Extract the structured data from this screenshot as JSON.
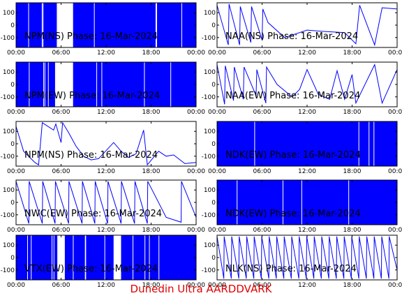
{
  "footer": {
    "credit": "Dunedin Ultra AARDDVARK"
  },
  "colors": {
    "trace": "#0000ff",
    "axis": "#000000",
    "background": "#ffffff",
    "credit": "#e00000"
  },
  "chart_data": [
    {
      "type": "line",
      "title": "NPM(NS) Phase: 16-Mar-2024",
      "xlim": [
        "00:00",
        "24:00"
      ],
      "ylim": [
        -180,
        180
      ],
      "xticks": [
        "00:00",
        "06:00",
        "12:00",
        "18:00",
        "00:00"
      ],
      "yticks": [
        100,
        0,
        -100
      ],
      "pattern": "dense-noise",
      "dense_ranges": [
        [
          0.0,
          5.5
        ],
        [
          7.6,
          24.0
        ]
      ],
      "series": [
        {
          "values": []
        }
      ]
    },
    {
      "type": "line",
      "title": "NAA(NS) Phase: 16-Mar-2024",
      "xlim": [
        "00:00",
        "24:00"
      ],
      "ylim": [
        -180,
        180
      ],
      "xticks": [
        "00:00",
        "06:00",
        "12:00",
        "18:00",
        "00:00"
      ],
      "yticks": [
        100,
        0,
        -100
      ],
      "pattern": "phase-trace",
      "series": [
        {
          "values": [
            [
              0,
              160
            ],
            [
              1.5,
              -160
            ],
            [
              1.6,
              170
            ],
            [
              3,
              -160
            ],
            [
              3.1,
              150
            ],
            [
              4.5,
              -140
            ],
            [
              4.6,
              150
            ],
            [
              6,
              -120
            ],
            [
              6.1,
              130
            ],
            [
              6.8,
              20
            ],
            [
              9,
              -100
            ],
            [
              12,
              -40
            ],
            [
              14,
              -50
            ],
            [
              17,
              -60
            ],
            [
              18.5,
              -150
            ],
            [
              19,
              160
            ],
            [
              21,
              -160
            ],
            [
              22,
              140
            ],
            [
              24,
              130
            ]
          ]
        }
      ]
    },
    {
      "type": "line",
      "title": "NPM(EW) Phase: 16-Mar-2024",
      "xlim": [
        "00:00",
        "24:00"
      ],
      "ylim": [
        -180,
        180
      ],
      "xticks": [
        "00:00",
        "06:00",
        "12:00",
        "18:00",
        "00:00"
      ],
      "yticks": [
        100,
        0,
        -100
      ],
      "pattern": "dense-noise",
      "dense_ranges": [
        [
          0.0,
          5.2
        ],
        [
          7.6,
          24.0
        ]
      ],
      "series": [
        {
          "values": []
        }
      ]
    },
    {
      "type": "line",
      "title": "NAA(EW) Phase: 16-Mar-2024",
      "xlim": [
        "00:00",
        "24:00"
      ],
      "ylim": [
        -180,
        180
      ],
      "xticks": [
        "00:00",
        "06:00",
        "12:00",
        "18:00",
        "00:00"
      ],
      "yticks": [
        100,
        0,
        -100
      ],
      "pattern": "phase-trace",
      "series": [
        {
          "values": [
            [
              0,
              160
            ],
            [
              1,
              -160
            ],
            [
              1.1,
              150
            ],
            [
              2.2,
              -130
            ],
            [
              2.3,
              140
            ],
            [
              3.5,
              -120
            ],
            [
              3.6,
              140
            ],
            [
              5.2,
              -90
            ],
            [
              5.3,
              120
            ],
            [
              6.5,
              -150
            ],
            [
              6.6,
              140
            ],
            [
              8,
              0
            ],
            [
              10,
              -100
            ],
            [
              11,
              -40
            ],
            [
              12,
              120
            ],
            [
              13.5,
              -80
            ],
            [
              15,
              -120
            ],
            [
              16,
              110
            ],
            [
              17,
              -120
            ],
            [
              18,
              80
            ],
            [
              18.5,
              -150
            ],
            [
              21,
              160
            ],
            [
              22,
              -150
            ],
            [
              24,
              120
            ]
          ]
        }
      ]
    },
    {
      "type": "line",
      "title": "NPM(NS) Phase: 16-Mar-2024",
      "xlim": [
        "00:00",
        "24:00"
      ],
      "ylim": [
        -180,
        180
      ],
      "xticks": [
        "00:00",
        "06:00",
        "12:00",
        "18:00",
        "00:00"
      ],
      "yticks": [
        100,
        0,
        -100
      ],
      "pattern": "phase-trace",
      "series": [
        {
          "values": [
            [
              0,
              140
            ],
            [
              0.5,
              40
            ],
            [
              1,
              -60
            ],
            [
              2.5,
              -150
            ],
            [
              3,
              -170
            ],
            [
              3.5,
              170
            ],
            [
              5,
              110
            ],
            [
              5.3,
              160
            ],
            [
              6,
              10
            ],
            [
              6.2,
              170
            ],
            [
              7,
              90
            ],
            [
              8,
              -20
            ],
            [
              9,
              -100
            ],
            [
              10,
              -130
            ],
            [
              11,
              -120
            ],
            [
              13,
              10
            ],
            [
              14,
              -60
            ],
            [
              15,
              -110
            ],
            [
              16,
              -80
            ],
            [
              17,
              110
            ],
            [
              17.5,
              -170
            ],
            [
              19,
              -60
            ],
            [
              20,
              -100
            ],
            [
              21,
              -90
            ],
            [
              22.5,
              -160
            ],
            [
              24,
              -150
            ]
          ]
        }
      ]
    },
    {
      "type": "line",
      "title": "NDK(EW) Phase: 16-Mar-2024",
      "xlim": [
        "00:00",
        "24:00"
      ],
      "ylim": [
        -180,
        180
      ],
      "xticks": [
        "00:00",
        "06:00",
        "12:00",
        "18:00",
        "00:00"
      ],
      "yticks": [
        100,
        0,
        -100
      ],
      "pattern": "dense-noise",
      "dense_ranges": [
        [
          0.0,
          24.0
        ]
      ],
      "series": [
        {
          "values": []
        }
      ]
    },
    {
      "type": "line",
      "title": "NWC(EW) Phase: 16-Mar-2024",
      "xlim": [
        "00:00",
        "24:00"
      ],
      "ylim": [
        -180,
        180
      ],
      "xticks": [
        "00:00",
        "06:00",
        "12:00",
        "18:00",
        "00:00"
      ],
      "yticks": [
        100,
        0,
        -100
      ],
      "pattern": "sawtooth",
      "series": [
        {
          "values": [
            [
              0,
              170
            ],
            [
              1.7,
              -170
            ],
            [
              1.75,
              170
            ],
            [
              3.5,
              -170
            ],
            [
              3.55,
              170
            ],
            [
              5.2,
              -170
            ],
            [
              5.25,
              170
            ],
            [
              7,
              -170
            ],
            [
              7.05,
              170
            ],
            [
              8.8,
              -170
            ],
            [
              8.85,
              170
            ],
            [
              10.5,
              -170
            ],
            [
              10.55,
              170
            ],
            [
              12.2,
              -170
            ],
            [
              12.25,
              170
            ],
            [
              14,
              -170
            ],
            [
              14.05,
              170
            ],
            [
              15.8,
              -170
            ],
            [
              15.85,
              170
            ],
            [
              17.5,
              -170
            ],
            [
              17.55,
              170
            ],
            [
              20,
              -120
            ],
            [
              22,
              -160
            ],
            [
              22.05,
              170
            ],
            [
              24,
              -120
            ]
          ]
        }
      ]
    },
    {
      "type": "line",
      "title": "NDK(EW) Phase: 16-Mar-2024",
      "xlim": [
        "00:00",
        "24:00"
      ],
      "ylim": [
        -180,
        180
      ],
      "xticks": [
        "00:00",
        "06:00",
        "12:00",
        "18:00",
        "00:00"
      ],
      "yticks": [
        100,
        0,
        -100
      ],
      "pattern": "dense-noise",
      "dense_ranges": [
        [
          0.0,
          24.0
        ]
      ],
      "series": [
        {
          "values": []
        }
      ]
    },
    {
      "type": "line",
      "title": "VTX(EW) Phase: 16-Mar-2024",
      "xlim": [
        "00:00",
        "24:00"
      ],
      "ylim": [
        -180,
        180
      ],
      "xticks": [
        "00:00",
        "06:00",
        "12:00",
        "18:00",
        "00:00"
      ],
      "yticks": [
        100,
        0,
        -100
      ],
      "pattern": "dense-noise",
      "dense_ranges": [
        [
          0.0,
          5.5
        ],
        [
          6.5,
          13.0
        ],
        [
          14.0,
          24.0
        ]
      ],
      "series": [
        {
          "values": []
        }
      ]
    },
    {
      "type": "line",
      "title": "NLK(NS) Phase: 16-Mar-2024",
      "xlim": [
        "00:00",
        "24:00"
      ],
      "ylim": [
        -180,
        180
      ],
      "xticks": [
        "00:00",
        "06:00",
        "12:00",
        "18:00",
        "00:00"
      ],
      "yticks": [
        100,
        0,
        -100
      ],
      "pattern": "sawtooth",
      "series": [
        {
          "values": [
            [
              0,
              170
            ],
            [
              0.9,
              -170
            ],
            [
              0.95,
              170
            ],
            [
              1.9,
              -170
            ],
            [
              1.95,
              170
            ],
            [
              2.9,
              -170
            ],
            [
              2.95,
              170
            ],
            [
              3.9,
              -170
            ],
            [
              3.95,
              170
            ],
            [
              4.9,
              -170
            ],
            [
              4.95,
              170
            ],
            [
              5.9,
              -170
            ],
            [
              5.95,
              170
            ],
            [
              6.9,
              -170
            ],
            [
              6.95,
              170
            ],
            [
              7.9,
              -170
            ],
            [
              7.95,
              170
            ],
            [
              8.9,
              -170
            ],
            [
              8.95,
              170
            ],
            [
              9.9,
              -170
            ],
            [
              9.95,
              170
            ],
            [
              10.9,
              -170
            ],
            [
              10.95,
              170
            ],
            [
              11.9,
              -170
            ],
            [
              11.95,
              170
            ],
            [
              12.9,
              -170
            ],
            [
              12.95,
              170
            ],
            [
              13.9,
              -170
            ],
            [
              13.95,
              170
            ],
            [
              14.9,
              -170
            ],
            [
              14.95,
              170
            ],
            [
              15.9,
              -170
            ],
            [
              15.95,
              170
            ],
            [
              16.9,
              -170
            ],
            [
              16.95,
              170
            ],
            [
              17.9,
              -170
            ],
            [
              17.95,
              170
            ],
            [
              18.9,
              -170
            ],
            [
              18.95,
              170
            ],
            [
              19.9,
              -170
            ],
            [
              19.95,
              170
            ],
            [
              20.9,
              -170
            ],
            [
              20.95,
              170
            ],
            [
              21.9,
              -170
            ],
            [
              21.95,
              170
            ],
            [
              22.9,
              -170
            ],
            [
              22.95,
              170
            ],
            [
              24,
              -100
            ]
          ]
        }
      ]
    }
  ]
}
